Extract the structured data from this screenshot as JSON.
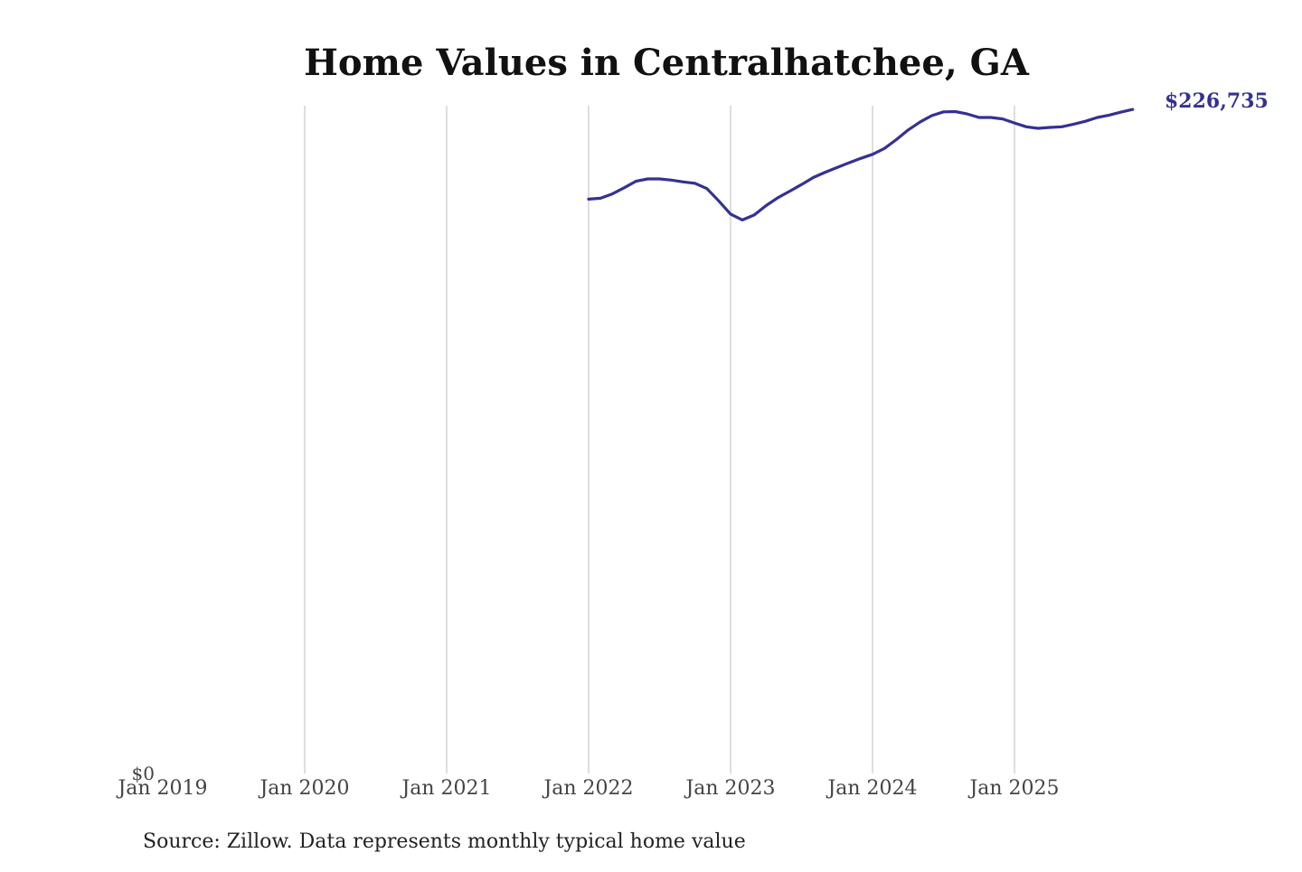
{
  "colors": {
    "series": "#353192",
    "grid": "#c8c8c8",
    "background": "#ffffff"
  },
  "chart_data": {
    "type": "line",
    "title": "Home Values in Centralhatchee, GA",
    "xlabel": "",
    "ylabel": "",
    "x_ticks": [
      "Jan 2019",
      "Jan 2020",
      "Jan 2021",
      "Jan 2022",
      "Jan 2023",
      "Jan 2024",
      "Jan 2025"
    ],
    "y_ticks": [
      {
        "value": 0,
        "label": "$0"
      }
    ],
    "ylim": [
      0,
      228000
    ],
    "xlim": [
      "2019-01",
      "2025-12"
    ],
    "grid": {
      "vertical": true,
      "horizontal": false
    },
    "legend": "none",
    "end_label": "$226,735",
    "source": "Source: Zillow. Data represents monthly typical home value",
    "series": [
      {
        "x": [
          "2022-01",
          "2022-02",
          "2022-03",
          "2022-04",
          "2022-05",
          "2022-06",
          "2022-07",
          "2022-08",
          "2022-09",
          "2022-10",
          "2022-11",
          "2022-12",
          "2023-01",
          "2023-02",
          "2023-03",
          "2023-04",
          "2023-05",
          "2023-06",
          "2023-07",
          "2023-08",
          "2023-09",
          "2023-10",
          "2023-11",
          "2023-12",
          "2024-01",
          "2024-02",
          "2024-03",
          "2024-04",
          "2024-05",
          "2024-06",
          "2024-07",
          "2024-08",
          "2024-09",
          "2024-10",
          "2024-11",
          "2024-12",
          "2025-01",
          "2025-02",
          "2025-03",
          "2025-04",
          "2025-05",
          "2025-06",
          "2025-07",
          "2025-08",
          "2025-09",
          "2025-10",
          "2025-11"
        ],
        "y": [
          196100,
          196400,
          197900,
          200000,
          202200,
          203000,
          203000,
          202600,
          202000,
          201500,
          199700,
          195500,
          191000,
          189000,
          190700,
          193900,
          196600,
          198800,
          201100,
          203500,
          205300,
          206900,
          208500,
          210000,
          211400,
          213400,
          216400,
          219700,
          222400,
          224600,
          225900,
          226000,
          225200,
          224000,
          224000,
          223500,
          222100,
          220800,
          220300,
          220600,
          220800,
          221700,
          222700,
          224000,
          224800,
          225800,
          226735
        ]
      }
    ]
  }
}
